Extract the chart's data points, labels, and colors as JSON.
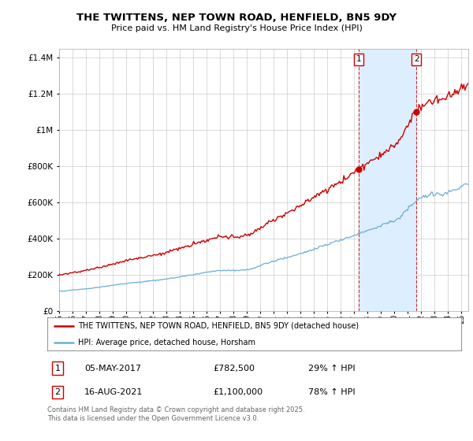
{
  "title_line1": "THE TWITTENS, NEP TOWN ROAD, HENFIELD, BN5 9DY",
  "title_line2": "Price paid vs. HM Land Registry's House Price Index (HPI)",
  "legend_label1": "THE TWITTENS, NEP TOWN ROAD, HENFIELD, BN5 9DY (detached house)",
  "legend_label2": "HPI: Average price, detached house, Horsham",
  "annotation1_date": "05-MAY-2017",
  "annotation1_price": "£782,500",
  "annotation1_hpi": "29% ↑ HPI",
  "annotation2_date": "16-AUG-2021",
  "annotation2_price": "£1,100,000",
  "annotation2_hpi": "78% ↑ HPI",
  "footnote": "Contains HM Land Registry data © Crown copyright and database right 2025.\nThis data is licensed under the Open Government Licence v3.0.",
  "hpi_color": "#6baed6",
  "price_color": "#cc0000",
  "vline_color": "#cc0000",
  "shade_color": "#ddeeff",
  "ylim": [
    0,
    1450000
  ],
  "yticks": [
    0,
    200000,
    400000,
    600000,
    800000,
    1000000,
    1200000,
    1400000
  ],
  "xlim_start": 1995.0,
  "xlim_end": 2025.5,
  "sale1_year": 2017.35,
  "sale2_year": 2021.63,
  "sale1_price": 782500,
  "sale2_price": 1100000
}
